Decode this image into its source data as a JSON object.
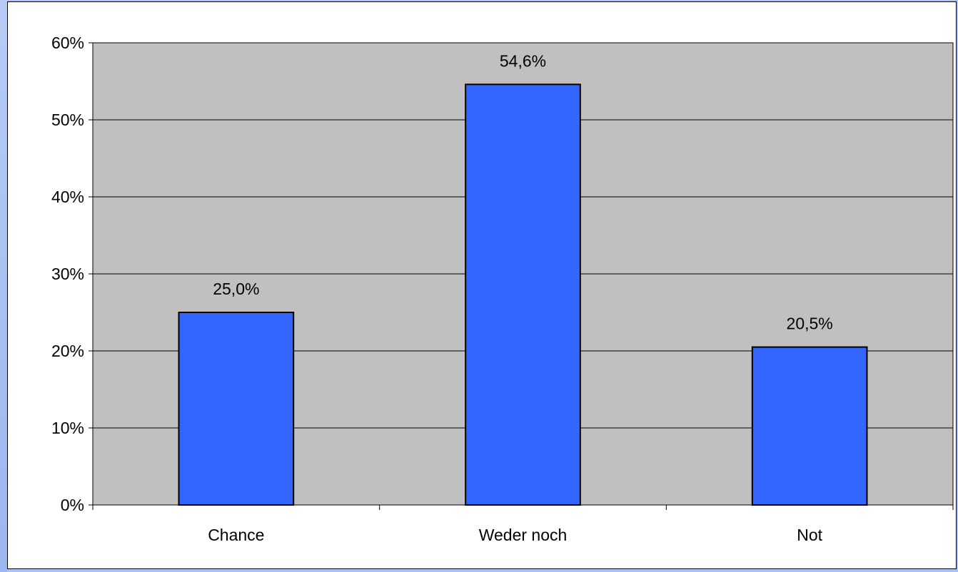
{
  "colors": {
    "background": "#a9c1f3",
    "chart_area": "#ffffff",
    "plot_area": "#c0c0c0",
    "bar_fill": "#3366ff",
    "bar_stroke": "#000000",
    "grid": "#000000",
    "text": "#000000"
  },
  "chart_data": {
    "type": "bar",
    "categories": [
      "Chance",
      "Weder noch",
      "Not"
    ],
    "values": [
      25.0,
      54.6,
      20.5
    ],
    "data_labels": [
      "25,0%",
      "54,6%",
      "20,5%"
    ],
    "ylim": [
      0,
      60
    ],
    "yticks": [
      0,
      10,
      20,
      30,
      40,
      50,
      60
    ],
    "ytick_labels": [
      "0%",
      "10%",
      "20%",
      "30%",
      "40%",
      "50%",
      "60%"
    ],
    "grid": true,
    "legend": "none",
    "title": "",
    "xlabel": "",
    "ylabel": ""
  }
}
